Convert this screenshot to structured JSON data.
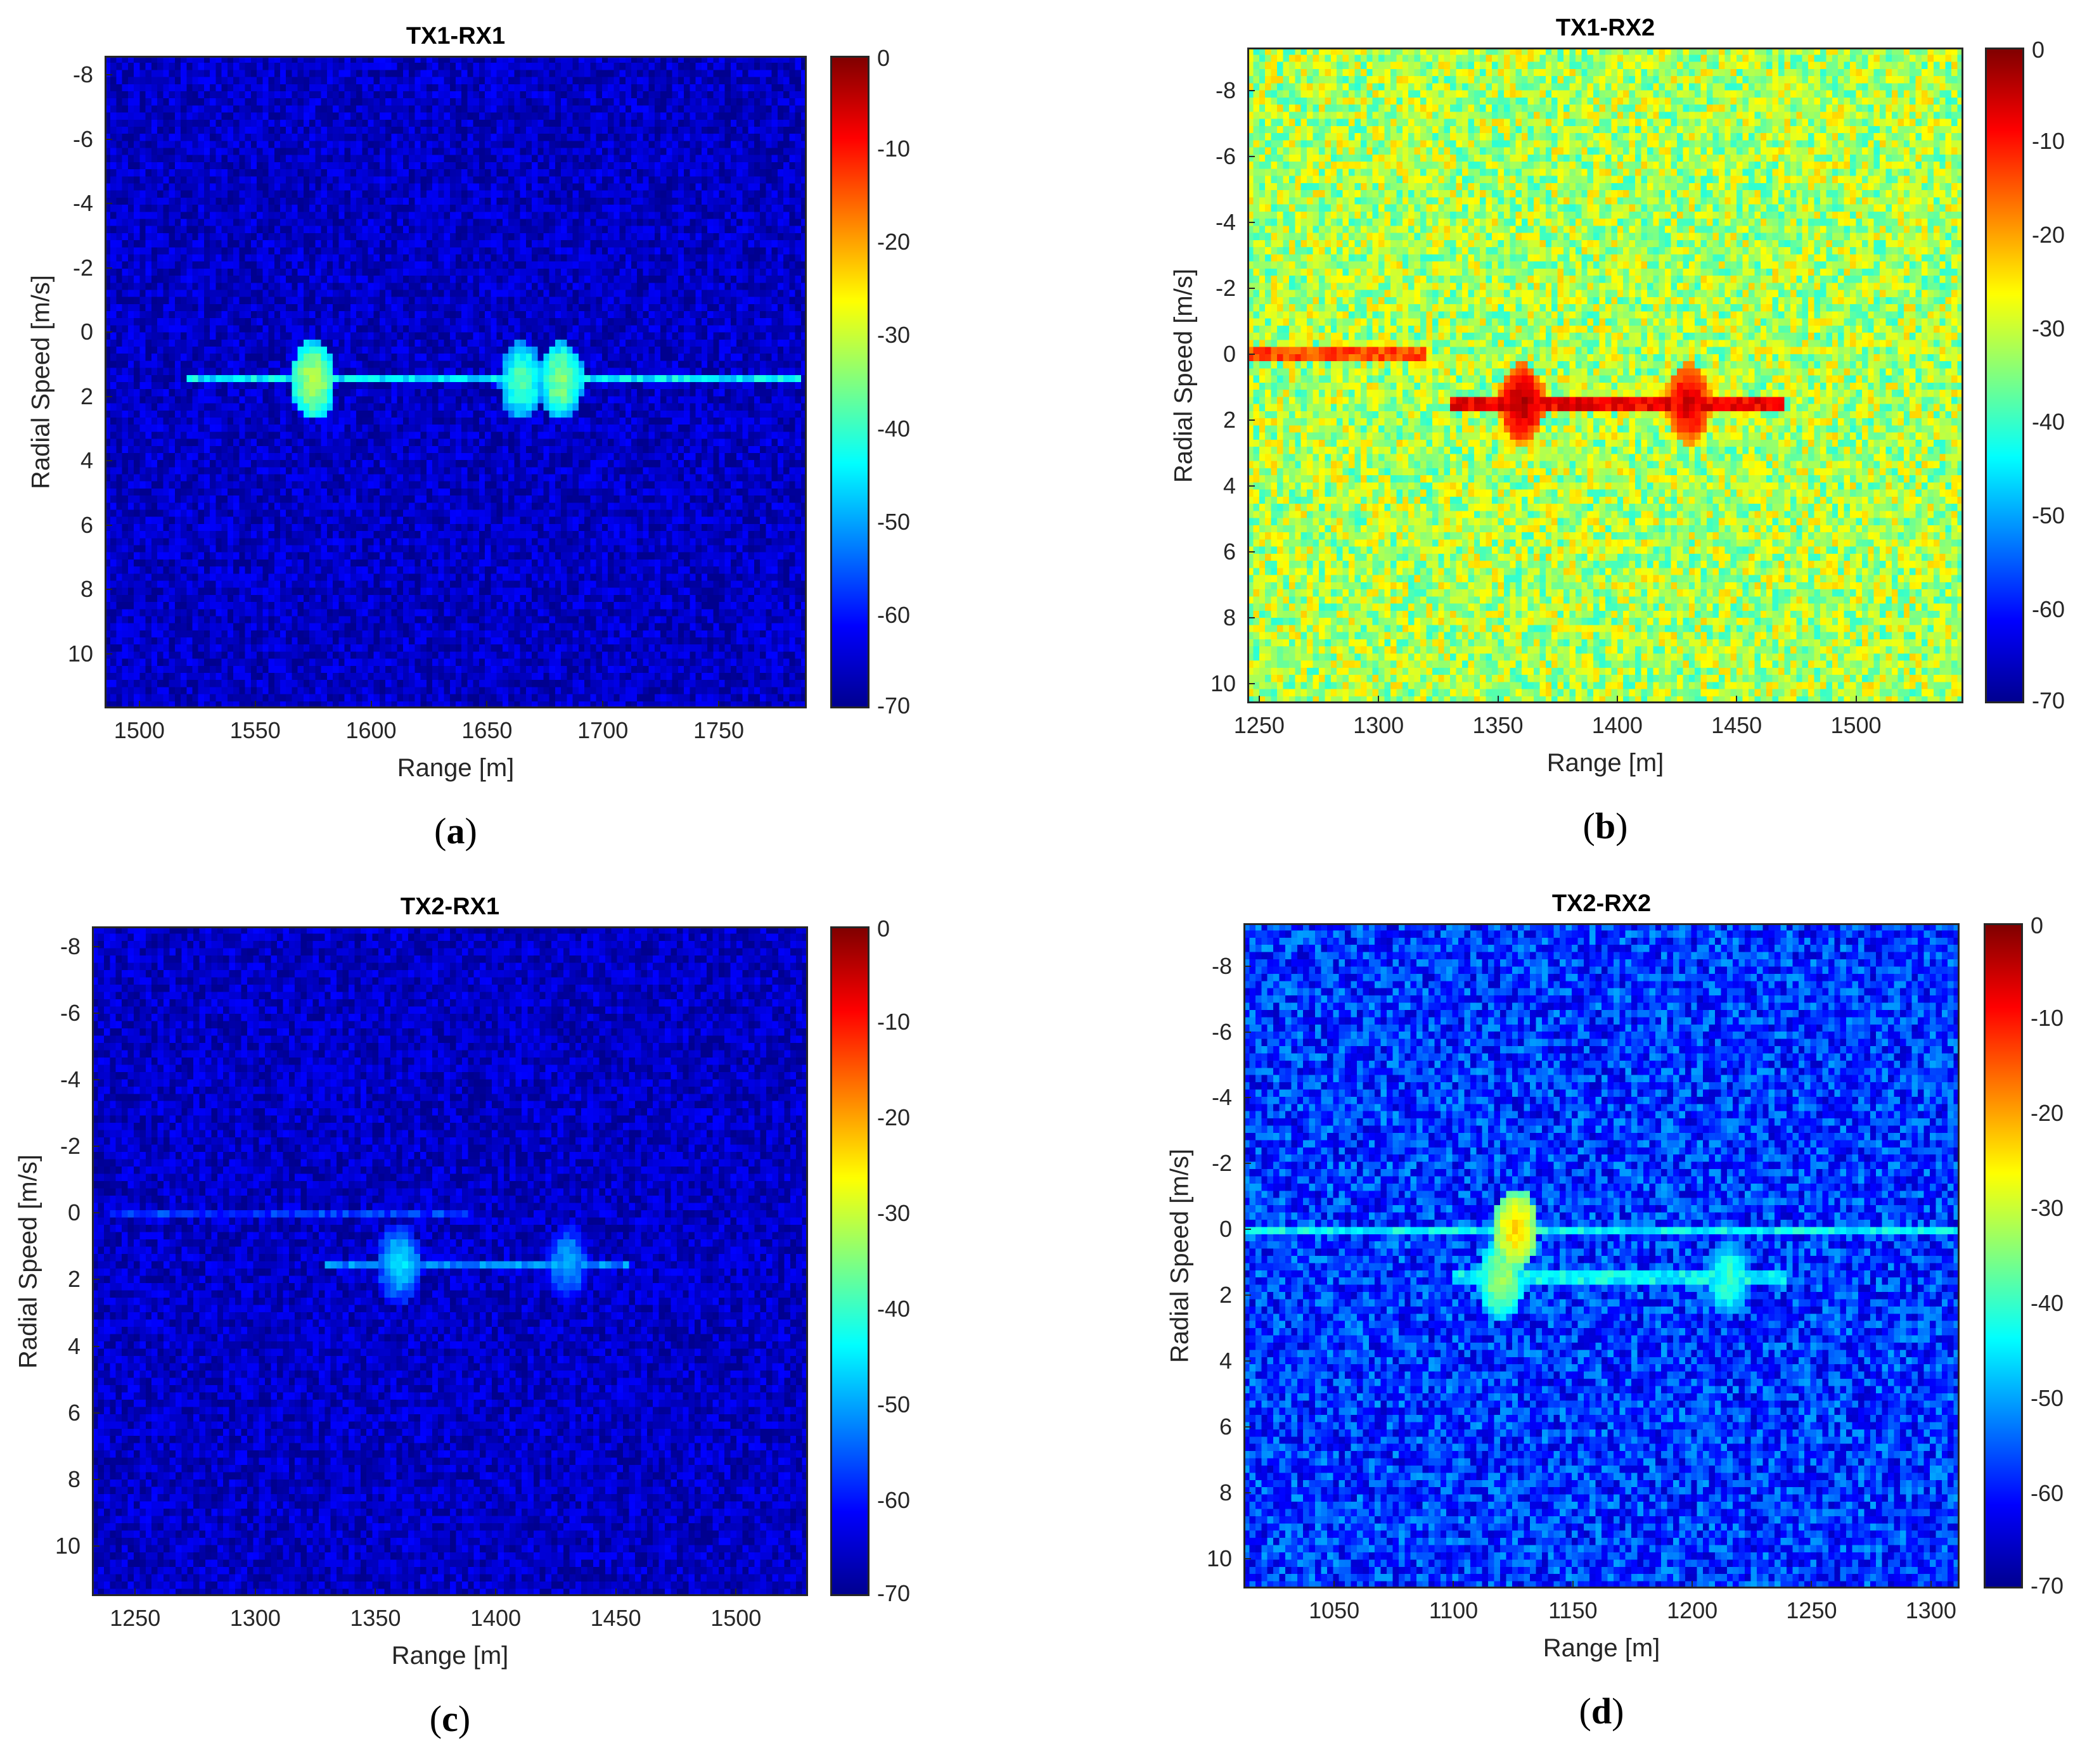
{
  "colors": {
    "colormap": [
      "#00008f",
      "#0000ff",
      "#0080ff",
      "#00ffff",
      "#80ff80",
      "#ffff00",
      "#ff8000",
      "#ff0000",
      "#800000"
    ],
    "axis": "#262626"
  },
  "chart_data": [
    {
      "id": "a",
      "type": "heatmap",
      "title": "TX1-RX1",
      "caption_letter": "a",
      "xlabel": "Range [m]",
      "ylabel": "Radial Speed [m/s]",
      "xlim": [
        1485,
        1788
      ],
      "ylim": [
        -8.6,
        11.7
      ],
      "xticks": [
        1500,
        1550,
        1600,
        1650,
        1700,
        1750
      ],
      "yticks": [
        -8,
        -6,
        -4,
        -2,
        0,
        2,
        4,
        6,
        8,
        10
      ],
      "colorbar_ticks": [
        0,
        -10,
        -20,
        -30,
        -40,
        -50,
        -60,
        -70
      ],
      "clim": [
        -70,
        0
      ],
      "background_level": -66,
      "noise_spread": 5,
      "stripes": [
        {
          "speed": 1.5,
          "range_from": 1520,
          "range_to": 1785,
          "level": -45
        }
      ],
      "spots": [
        {
          "range": 1575,
          "speed": 1.5,
          "level": -32
        },
        {
          "range": 1665,
          "speed": 1.5,
          "level": -38
        },
        {
          "range": 1682,
          "speed": 1.5,
          "level": -35
        }
      ]
    },
    {
      "id": "b",
      "type": "heatmap",
      "title": "TX1-RX2",
      "caption_letter": "b",
      "xlabel": "Range [m]",
      "ylabel": "Radial Speed [m/s]",
      "xlim": [
        1245,
        1545
      ],
      "ylim": [
        -9.3,
        10.6
      ],
      "xticks": [
        1250,
        1300,
        1350,
        1400,
        1450,
        1500
      ],
      "yticks": [
        -8,
        -6,
        -4,
        -2,
        0,
        2,
        4,
        6,
        8,
        10
      ],
      "colorbar_ticks": [
        0,
        -10,
        -20,
        -30,
        -40,
        -50,
        -60,
        -70
      ],
      "clim": [
        -70,
        0
      ],
      "background_level": -32,
      "noise_spread": 9,
      "stripes": [
        {
          "speed": 0,
          "range_from": 1245,
          "range_to": 1320,
          "level": -14
        },
        {
          "speed": 1.5,
          "range_from": 1330,
          "range_to": 1470,
          "level": -8
        }
      ],
      "spots": [
        {
          "range": 1360,
          "speed": 1.5,
          "level": -4
        },
        {
          "range": 1430,
          "speed": 1.5,
          "level": -6
        }
      ]
    },
    {
      "id": "c",
      "type": "heatmap",
      "title": "TX2-RX1",
      "caption_letter": "c",
      "xlabel": "Range [m]",
      "ylabel": "Radial Speed [m/s]",
      "xlim": [
        1232,
        1530
      ],
      "ylim": [
        -8.6,
        11.5
      ],
      "xticks": [
        1250,
        1300,
        1350,
        1400,
        1450,
        1500
      ],
      "yticks": [
        -8,
        -6,
        -4,
        -2,
        0,
        2,
        4,
        6,
        8,
        10
      ],
      "colorbar_ticks": [
        0,
        -10,
        -20,
        -30,
        -40,
        -50,
        -60,
        -70
      ],
      "clim": [
        -70,
        0
      ],
      "background_level": -66,
      "noise_spread": 5,
      "stripes": [
        {
          "speed": 0,
          "range_from": 1240,
          "range_to": 1390,
          "level": -58
        },
        {
          "speed": 1.5,
          "range_from": 1330,
          "range_to": 1455,
          "level": -52
        }
      ],
      "spots": [
        {
          "range": 1360,
          "speed": 1.5,
          "level": -46
        },
        {
          "range": 1430,
          "speed": 1.5,
          "level": -50
        }
      ]
    },
    {
      "id": "d",
      "type": "heatmap",
      "title": "TX2-RX2",
      "caption_letter": "d",
      "xlabel": "Range [m]",
      "ylabel": "Radial Speed [m/s]",
      "xlim": [
        1012,
        1312
      ],
      "ylim": [
        -9.3,
        10.9
      ],
      "xticks": [
        1050,
        1100,
        1150,
        1200,
        1250,
        1300
      ],
      "yticks": [
        -8,
        -6,
        -4,
        -2,
        0,
        2,
        4,
        6,
        8,
        10
      ],
      "colorbar_ticks": [
        0,
        -10,
        -20,
        -30,
        -40,
        -50,
        -60,
        -70
      ],
      "clim": [
        -70,
        0
      ],
      "background_level": -58,
      "noise_spread": 8,
      "stripes": [
        {
          "speed": 0,
          "range_from": 1012,
          "range_to": 1312,
          "level": -44
        },
        {
          "speed": 1.5,
          "range_from": 1100,
          "range_to": 1240,
          "level": -44
        }
      ],
      "spots": [
        {
          "range": 1126,
          "speed": 0,
          "level": -24
        },
        {
          "range": 1120,
          "speed": 1.5,
          "level": -33
        },
        {
          "range": 1215,
          "speed": 1.5,
          "level": -40
        }
      ]
    }
  ]
}
